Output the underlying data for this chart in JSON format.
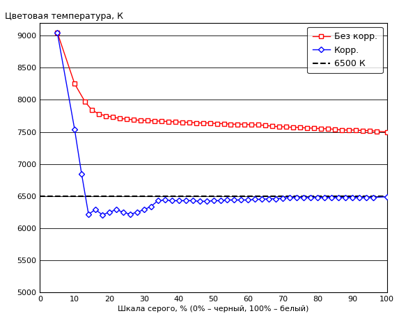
{
  "title": "Цветовая температура, К",
  "xlabel": "Шкала серого, % (0% – черный, 100% – белый)",
  "xlim": [
    0,
    100
  ],
  "ylim": [
    5000,
    9200
  ],
  "yticks": [
    5000,
    5500,
    6000,
    6500,
    7000,
    7500,
    8000,
    8500,
    9000
  ],
  "xticks": [
    0,
    10,
    20,
    30,
    40,
    50,
    60,
    70,
    80,
    90,
    100
  ],
  "line6500": 6500,
  "red_x": [
    5,
    10,
    13,
    15,
    17,
    19,
    21,
    23,
    25,
    27,
    29,
    31,
    33,
    35,
    37,
    39,
    41,
    43,
    45,
    47,
    49,
    51,
    53,
    55,
    57,
    59,
    61,
    63,
    65,
    67,
    69,
    71,
    73,
    75,
    77,
    79,
    81,
    83,
    85,
    87,
    89,
    91,
    93,
    95,
    97,
    100
  ],
  "red_y": [
    9050,
    8250,
    7970,
    7840,
    7780,
    7750,
    7730,
    7710,
    7700,
    7690,
    7680,
    7680,
    7670,
    7670,
    7660,
    7660,
    7650,
    7650,
    7640,
    7640,
    7640,
    7630,
    7630,
    7620,
    7620,
    7620,
    7610,
    7610,
    7600,
    7590,
    7580,
    7580,
    7570,
    7570,
    7560,
    7560,
    7550,
    7550,
    7540,
    7530,
    7530,
    7530,
    7520,
    7520,
    7510,
    7500
  ],
  "blue_x": [
    5,
    10,
    12,
    14,
    16,
    18,
    20,
    22,
    24,
    26,
    28,
    30,
    32,
    34,
    36,
    38,
    40,
    42,
    44,
    46,
    48,
    50,
    52,
    54,
    56,
    58,
    60,
    62,
    64,
    66,
    68,
    70,
    72,
    74,
    76,
    78,
    80,
    82,
    84,
    86,
    88,
    90,
    92,
    94,
    96,
    100
  ],
  "blue_y": [
    9050,
    7540,
    6850,
    6220,
    6290,
    6210,
    6250,
    6290,
    6250,
    6220,
    6250,
    6290,
    6340,
    6430,
    6440,
    6430,
    6430,
    6430,
    6430,
    6420,
    6420,
    6430,
    6430,
    6440,
    6440,
    6440,
    6440,
    6450,
    6450,
    6460,
    6460,
    6470,
    6480,
    6480,
    6480,
    6480,
    6480,
    6480,
    6480,
    6480,
    6480,
    6480,
    6480,
    6480,
    6480,
    6490
  ],
  "red_color": "#ff0000",
  "blue_color": "#0000ff",
  "dashed_color": "#000000",
  "legend_bez": "Без корр.",
  "legend_korr": "Корр.",
  "legend_6500": "6500 К",
  "bg_color": "#ffffff",
  "grid_color": "#000000",
  "title_fontsize": 9,
  "label_fontsize": 8,
  "tick_fontsize": 8,
  "legend_fontsize": 9
}
